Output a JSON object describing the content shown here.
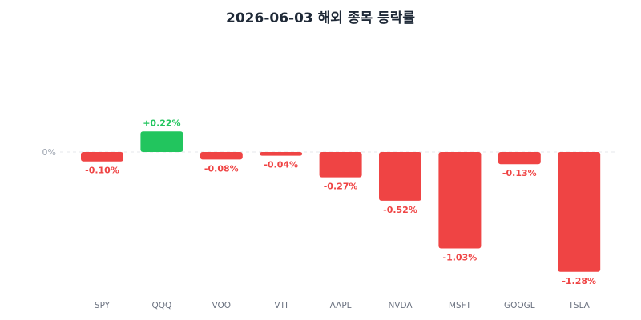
{
  "chart_data": {
    "type": "bar",
    "title": "2026-06-03 해외 종목 등락률",
    "categories": [
      "SPY",
      "QQQ",
      "VOO",
      "VTI",
      "AAPL",
      "NVDA",
      "MSFT",
      "GOOGL",
      "TSLA"
    ],
    "values": [
      -0.1,
      0.22,
      -0.08,
      -0.04,
      -0.27,
      -0.52,
      -1.03,
      -0.13,
      -1.28
    ],
    "value_labels": [
      "-0.10%",
      "+0.22%",
      "-0.08%",
      "-0.04%",
      "-0.27%",
      "-0.52%",
      "-1.03%",
      "-0.13%",
      "-1.28%"
    ],
    "zero_label": "0%",
    "ylim": [
      -1.28,
      0.22
    ],
    "colors": {
      "positive": "#22c55e",
      "negative": "#ef4444",
      "zero_line": "#e5e7eb"
    },
    "grid": false,
    "legend": "none"
  }
}
